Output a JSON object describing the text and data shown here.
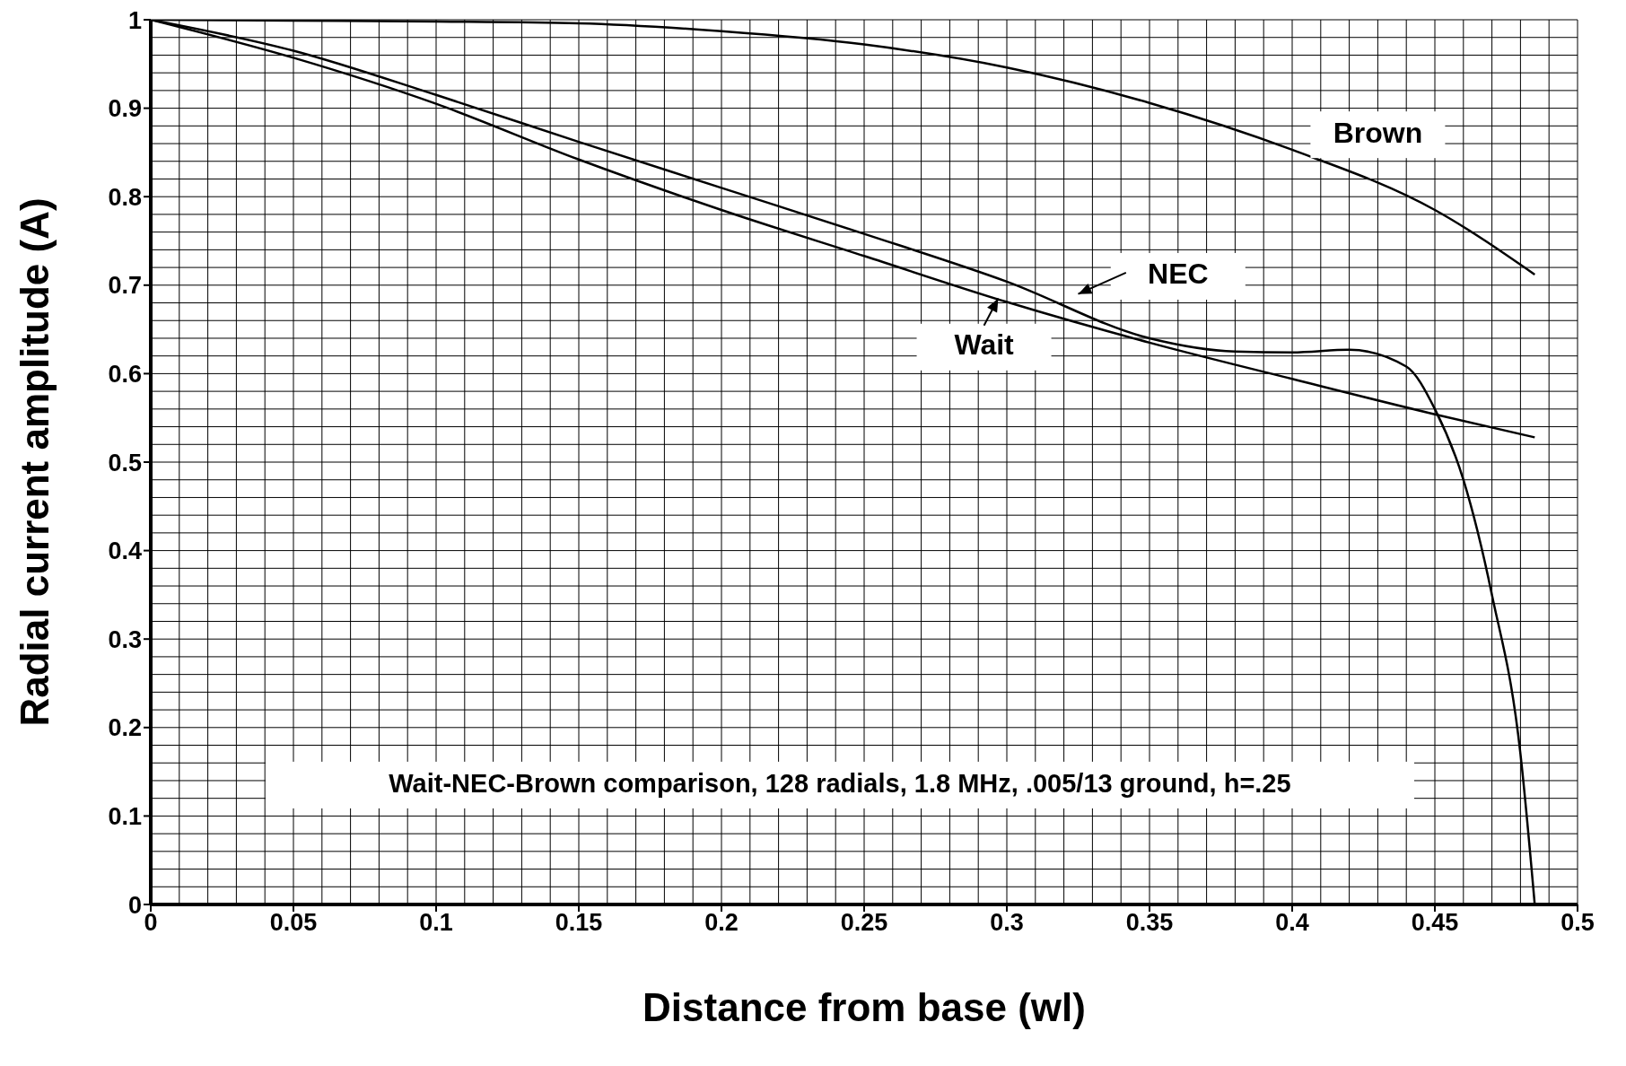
{
  "chart_data": {
    "type": "line",
    "xlabel": "Distance from base (wl)",
    "ylabel": "Radial current amplitude (A)",
    "xlim": [
      0,
      0.5
    ],
    "xticks": [
      0,
      0.05,
      0.1,
      0.15,
      0.2,
      0.25,
      0.3,
      0.35,
      0.4,
      0.45,
      0.5
    ],
    "ylim": [
      0,
      1
    ],
    "yticks": [
      0,
      0.1,
      0.2,
      0.3,
      0.4,
      0.5,
      0.6,
      0.7,
      0.8,
      0.9,
      1
    ],
    "grid": true,
    "marker": "none",
    "line_style": "solid",
    "annotations": [
      "Wait-NEC-Brown comparison, 128 radials, 1.8 MHz, .005/13 ground, h=.25"
    ],
    "series": [
      {
        "name": "Brown",
        "color": "#000000",
        "x": [
          0,
          0.05,
          0.1,
          0.15,
          0.2,
          0.25,
          0.3,
          0.35,
          0.4,
          0.45,
          0.485
        ],
        "values": [
          1,
          0.999,
          0.998,
          0.996,
          0.987,
          0.972,
          0.946,
          0.906,
          0.853,
          0.785,
          0.712
        ]
      },
      {
        "name": "NEC",
        "color": "#000000",
        "x": [
          0,
          0.05,
          0.1,
          0.15,
          0.2,
          0.25,
          0.3,
          0.35,
          0.38,
          0.4,
          0.42,
          0.44,
          0.45,
          0.46,
          0.47,
          0.48,
          0.485
        ],
        "values": [
          1,
          0.965,
          0.915,
          0.862,
          0.81,
          0.758,
          0.704,
          0.64,
          0.625,
          0.624,
          0.627,
          0.608,
          0.56,
          0.48,
          0.35,
          0.17,
          0
        ]
      },
      {
        "name": "Wait",
        "color": "#000000",
        "x": [
          0,
          0.05,
          0.1,
          0.15,
          0.2,
          0.25,
          0.3,
          0.35,
          0.4,
          0.45,
          0.485
        ],
        "values": [
          1,
          0.957,
          0.905,
          0.842,
          0.785,
          0.733,
          0.681,
          0.635,
          0.594,
          0.554,
          0.528
        ]
      }
    ]
  }
}
